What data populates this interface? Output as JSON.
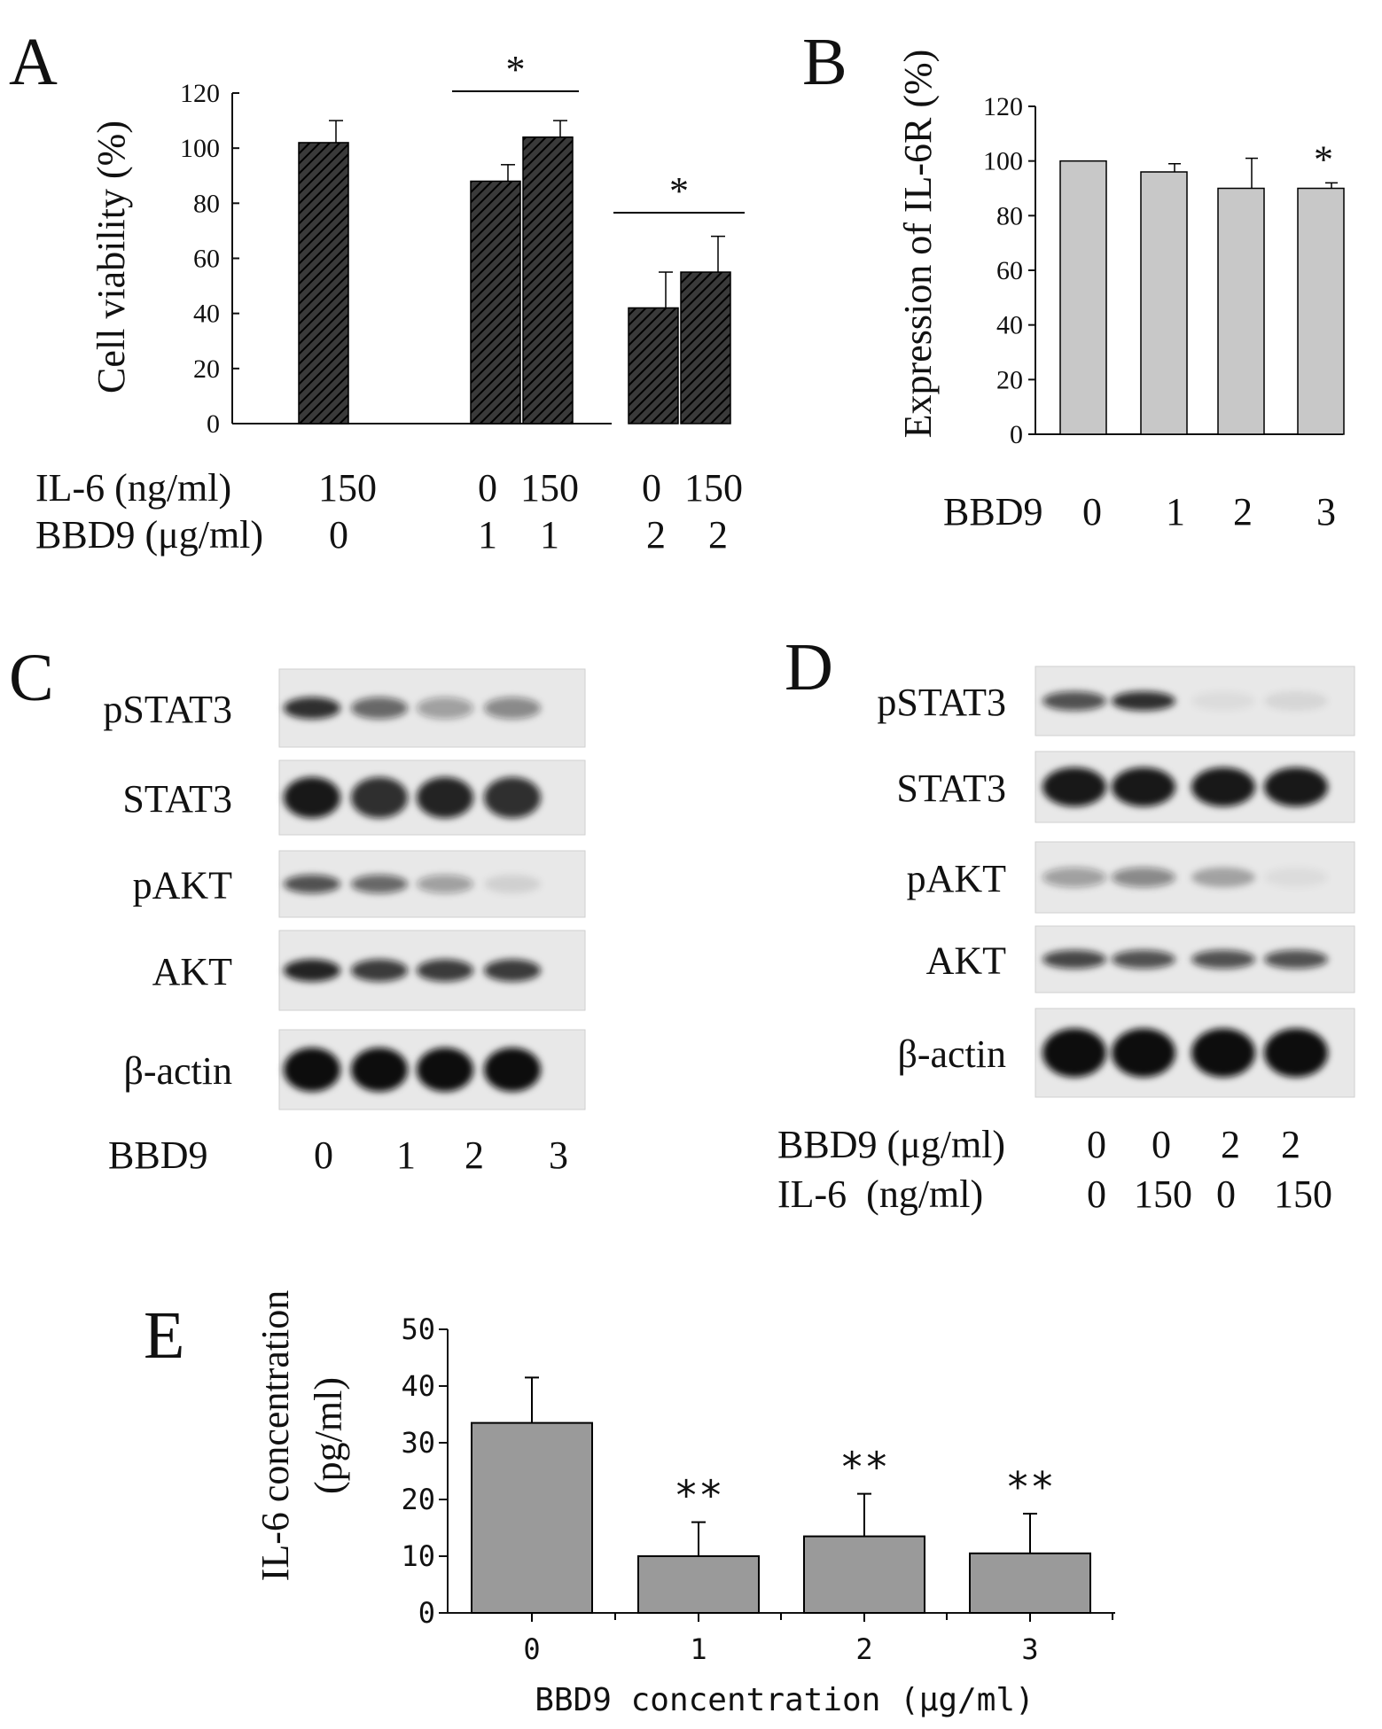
{
  "panels": {
    "A": {
      "letter": "A"
    },
    "B": {
      "letter": "B"
    },
    "C": {
      "letter": "C"
    },
    "D": {
      "letter": "D"
    },
    "E": {
      "letter": "E"
    }
  },
  "chart_data": [
    {
      "id": "A",
      "type": "bar",
      "ylabel": "Cell viability (%)",
      "ylim": [
        0,
        120
      ],
      "yticks": [
        0,
        20,
        40,
        60,
        80,
        100,
        120
      ],
      "values": [
        102,
        88,
        104,
        42,
        55
      ],
      "errors": [
        8,
        6,
        6,
        13,
        13
      ],
      "row_labels": [
        "IL-6 (ng/ml)",
        "BBD9 (μg/ml)"
      ],
      "il6": [
        "150",
        "0",
        "150",
        "0",
        "150"
      ],
      "bbd9": [
        "0",
        "1",
        "1",
        "2",
        "2"
      ],
      "significance": [
        "*",
        "*"
      ],
      "grid": false
    },
    {
      "id": "B",
      "type": "bar",
      "ylabel": "Expression of IL-6R (%)",
      "ylim": [
        0,
        120
      ],
      "yticks": [
        0,
        20,
        40,
        60,
        80,
        100,
        120
      ],
      "categories": [
        "0",
        "1",
        "2",
        "3"
      ],
      "values": [
        100,
        96,
        90,
        90
      ],
      "errors": [
        0,
        3,
        11,
        2
      ],
      "xlabel": "BBD9",
      "significance": [
        "",
        "",
        "",
        "*"
      ],
      "grid": false
    },
    {
      "id": "E",
      "type": "bar",
      "ylabel": "IL-6 concentration (pg/ml)",
      "ylabel_lines": [
        "IL-6 concentration",
        "(pg/ml)"
      ],
      "xlabel": "BBD9 concentration (μg/ml)",
      "ylim": [
        0,
        50
      ],
      "yticks": [
        0,
        10,
        20,
        30,
        40,
        50
      ],
      "categories": [
        "0",
        "1",
        "2",
        "3"
      ],
      "values": [
        33.5,
        10,
        13.5,
        10.5
      ],
      "errors": [
        8,
        6,
        7.5,
        7
      ],
      "significance": [
        "",
        "**",
        "**",
        "**"
      ],
      "grid": false
    }
  ],
  "blots": {
    "C": {
      "bands": [
        "pSTAT3",
        "STAT3",
        "pAKT",
        "AKT",
        "β-actin"
      ],
      "lane_label": "BBD9",
      "lanes": [
        "0",
        "1",
        "2",
        "3"
      ],
      "intensity": {
        "pSTAT3": [
          0.85,
          0.6,
          0.35,
          0.45
        ],
        "STAT3": [
          0.95,
          0.85,
          0.9,
          0.85
        ],
        "pAKT": [
          0.7,
          0.6,
          0.35,
          0.1
        ],
        "AKT": [
          0.9,
          0.8,
          0.8,
          0.8
        ],
        "β-actin": [
          1.0,
          1.0,
          1.0,
          1.0
        ]
      }
    },
    "D": {
      "bands": [
        "pSTAT3",
        "STAT3",
        "pAKT",
        "AKT",
        "β-actin"
      ],
      "row_labels": [
        "BBD9 (μg/ml)",
        "IL-6  (ng/ml)"
      ],
      "bbd9": [
        "0",
        "0",
        "2",
        "2"
      ],
      "il6": [
        "0",
        "150",
        "0",
        "150"
      ],
      "intensity": {
        "pSTAT3": [
          0.7,
          0.85,
          0.05,
          0.08
        ],
        "STAT3": [
          0.95,
          0.95,
          0.95,
          0.95
        ],
        "pAKT": [
          0.35,
          0.45,
          0.3,
          0.05
        ],
        "AKT": [
          0.75,
          0.7,
          0.7,
          0.7
        ],
        "β-actin": [
          1.0,
          1.0,
          1.0,
          1.0
        ]
      }
    }
  },
  "colors": {
    "bar_hatched": "#1a1a1a",
    "bar_light": "#c8c8c8",
    "bar_mid": "#9a9a9a",
    "axis": "#111111",
    "blot_bg": "#e8e8e8",
    "band": "#101010"
  }
}
